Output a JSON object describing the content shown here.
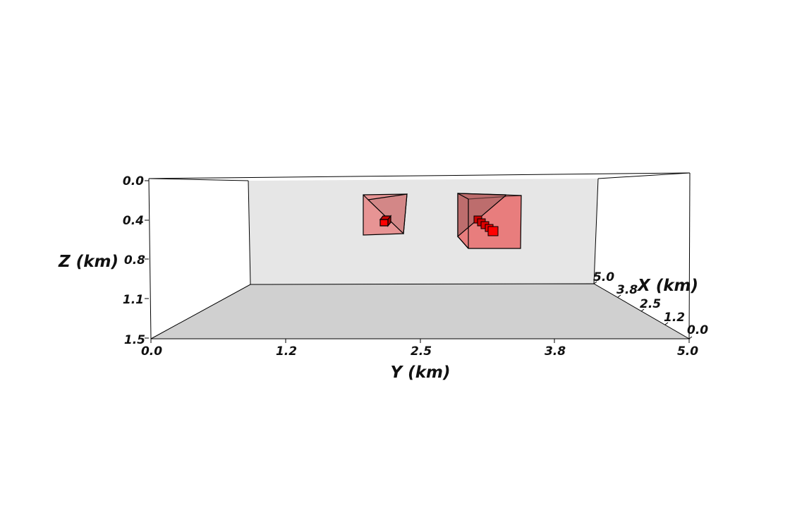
{
  "scene": {
    "colors": {
      "background": "#ffffff",
      "back_wall": "#e6e6e6",
      "floor": "#d0d0d0",
      "box_fill": "#e85050",
      "marker_fill": "#ff0000",
      "edge": "#000000"
    },
    "axes": {
      "y": {
        "title": "Y (km)",
        "ticks": [
          "0.0",
          "1.2",
          "2.5",
          "3.8",
          "5.0"
        ]
      },
      "z": {
        "title": "Z (km)",
        "ticks": [
          "0.0",
          "0.4",
          "0.8",
          "1.1",
          "1.5"
        ]
      },
      "x": {
        "title": "X (km)",
        "ticks": [
          "5.0",
          "3.8",
          "2.5",
          "1.2",
          "0.0"
        ]
      }
    }
  }
}
